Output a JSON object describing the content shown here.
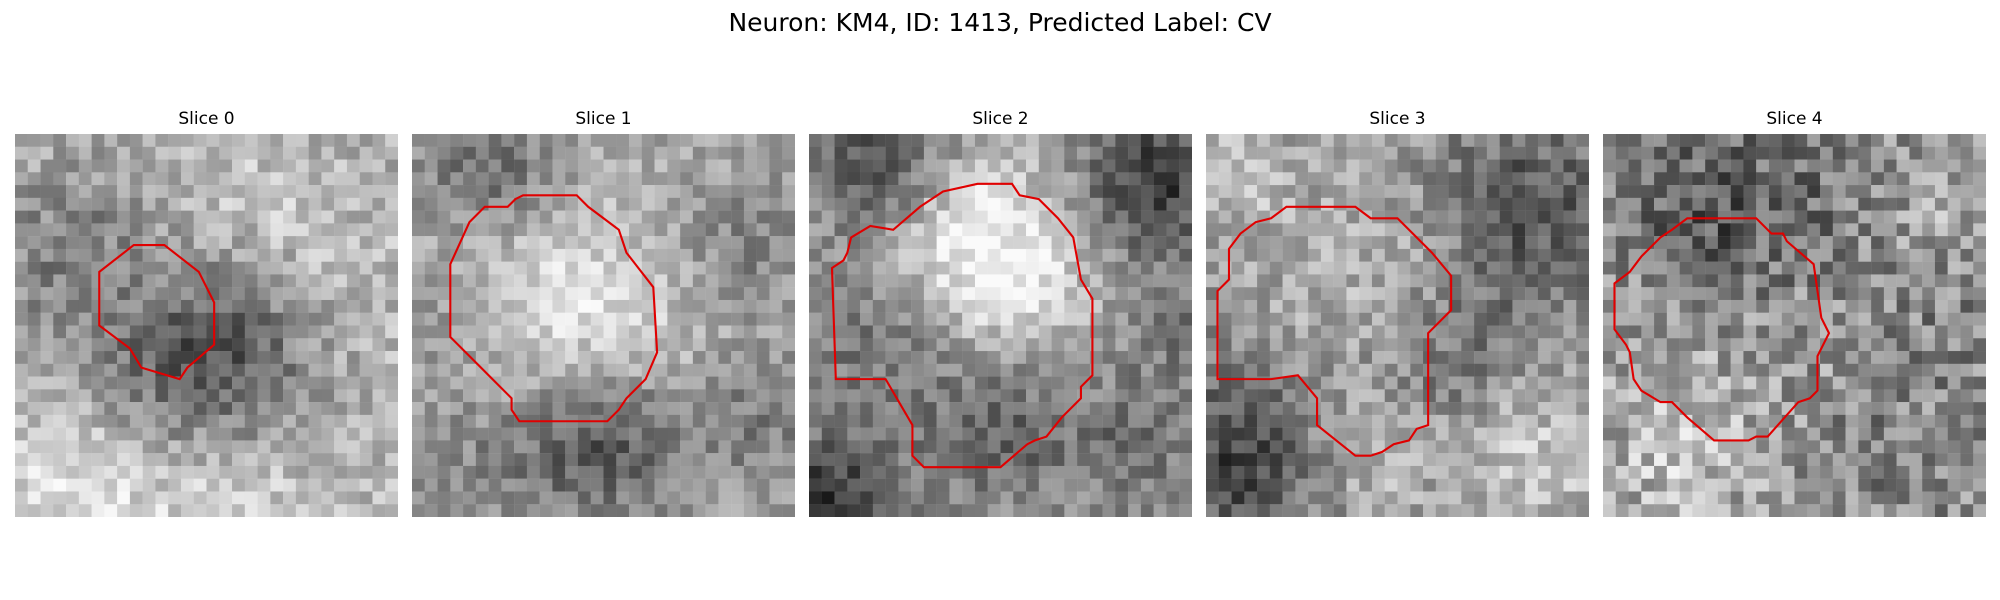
{
  "figure": {
    "title": "Neuron: KM4, ID: 1413, Predicted Label: CV"
  },
  "panels": [
    {
      "title": "Slice 0"
    },
    {
      "title": "Slice 1"
    },
    {
      "title": "Slice 2"
    },
    {
      "title": "Slice 3"
    },
    {
      "title": "Slice 4"
    }
  ],
  "colors": {
    "contour": "#e00000",
    "background": "#ffffff"
  }
}
